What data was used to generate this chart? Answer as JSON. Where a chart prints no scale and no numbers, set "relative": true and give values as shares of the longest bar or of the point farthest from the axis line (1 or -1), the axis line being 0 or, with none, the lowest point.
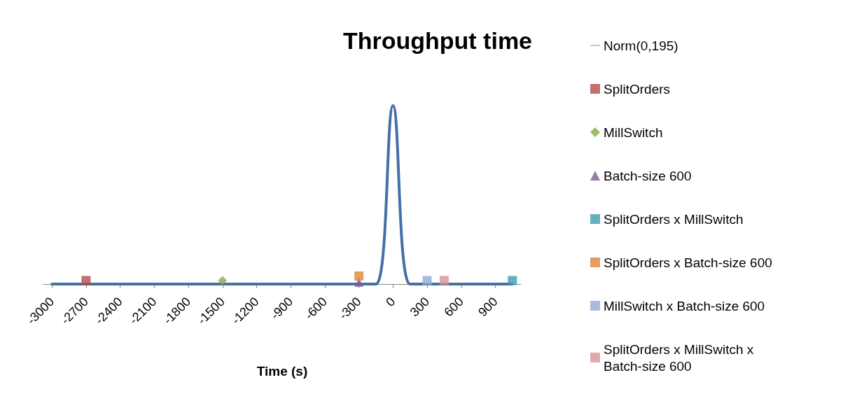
{
  "chart_data": {
    "type": "line",
    "title": "Throughput time",
    "xlabel": "Time (s)",
    "relative": true,
    "legend": "right",
    "grid": false,
    "xlim": [
      -3075,
      1125
    ],
    "xticks": [
      -3000,
      -2700,
      -2400,
      -2100,
      -1800,
      -1500,
      -1200,
      -900,
      -600,
      -300,
      0,
      300,
      600,
      900
    ],
    "series": [
      {
        "name": "Norm(0,195)",
        "type": "line",
        "color": "#4470a8",
        "marker": "none",
        "line_style": "solid",
        "x": [
          -3000,
          -2850,
          -2700,
          -2550,
          -2400,
          -2250,
          -2100,
          -1950,
          -1800,
          -1650,
          -1500,
          -1350,
          -1200,
          -1050,
          -900,
          -750,
          -600,
          -450,
          -300,
          -150,
          0,
          150,
          300,
          450,
          600,
          750,
          900,
          1050
        ],
        "values": [
          0,
          0,
          0,
          0,
          0,
          0,
          0,
          0,
          0,
          0,
          0,
          0,
          0,
          0,
          0,
          0,
          0,
          0,
          0,
          0,
          1,
          0,
          0,
          0,
          0,
          0,
          0,
          0
        ]
      },
      {
        "name": "SplitOrders",
        "type": "scatter",
        "color": "#b84a48",
        "marker": "square",
        "x": [
          -2700
        ],
        "values": [
          0.02
        ]
      },
      {
        "name": "MillSwitch",
        "type": "scatter",
        "color": "#8aaa4a",
        "marker": "diamond",
        "x": [
          -1500
        ],
        "values": [
          0.02
        ]
      },
      {
        "name": "Batch-size 600",
        "type": "scatter",
        "color": "#7a5a9a",
        "marker": "triangle",
        "x": [
          -300
        ],
        "values": [
          0.01
        ]
      },
      {
        "name": "SplitOrders x MillSwitch",
        "type": "scatter",
        "color": "#3e9bb0",
        "marker": "square",
        "x": [
          1050
        ],
        "values": [
          0.02
        ]
      },
      {
        "name": "SplitOrders x Batch-size 600",
        "type": "scatter",
        "color": "#e0823a",
        "marker": "square",
        "x": [
          -300
        ],
        "values": [
          0.045
        ]
      },
      {
        "name": "MillSwitch x Batch-size 600",
        "type": "scatter",
        "color": "#94aad4",
        "marker": "square",
        "x": [
          300
        ],
        "values": [
          0.02
        ]
      },
      {
        "name": "SplitOrders x MillSwitch x Batch-size 600",
        "type": "scatter",
        "color": "#d49494",
        "marker": "square",
        "x": [
          450
        ],
        "values": [
          0.02
        ]
      }
    ]
  }
}
